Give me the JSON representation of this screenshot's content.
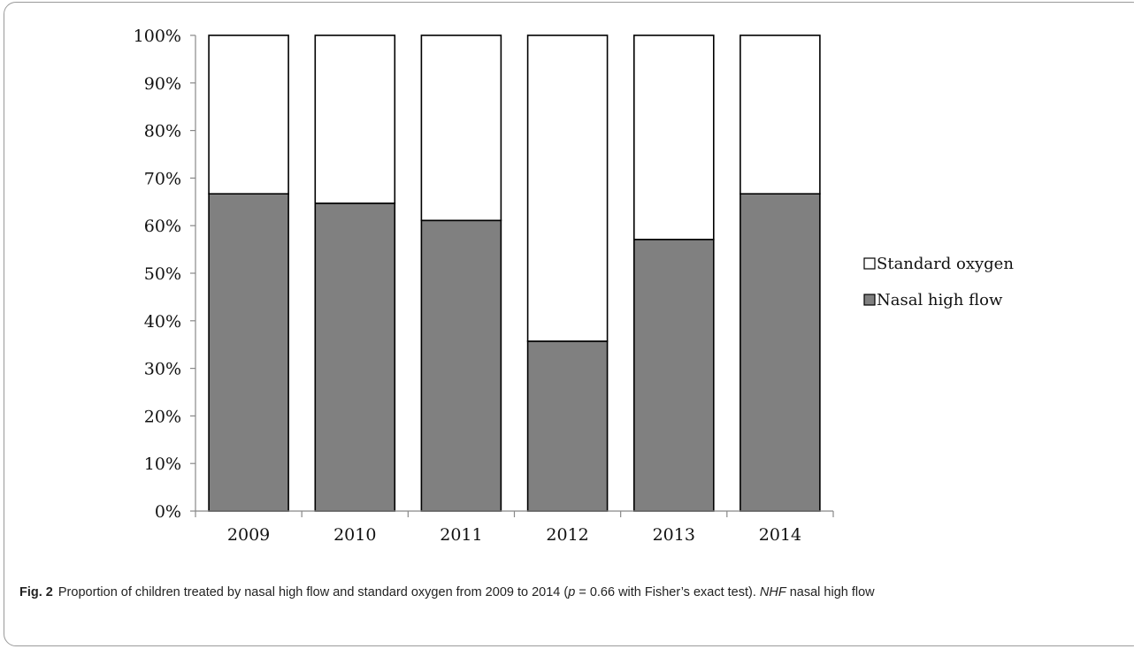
{
  "chart_data": {
    "type": "bar",
    "stacked": true,
    "percent_stacked": true,
    "categories": [
      "2009",
      "2010",
      "2011",
      "2012",
      "2013",
      "2014"
    ],
    "series": [
      {
        "name": "Nasal high flow",
        "values": [
          66.7,
          64.7,
          61.1,
          35.7,
          57.1,
          66.7
        ],
        "color": "#808080"
      },
      {
        "name": "Standard oxygen",
        "values": [
          33.3,
          35.3,
          38.9,
          64.3,
          42.9,
          33.3
        ],
        "color": "#ffffff"
      }
    ],
    "ylim": [
      0,
      100
    ],
    "yticks": [
      "0%",
      "10%",
      "20%",
      "30%",
      "40%",
      "50%",
      "60%",
      "70%",
      "80%",
      "90%",
      "100%"
    ],
    "grid": false,
    "legend": "right",
    "legend_order": [
      "Standard oxygen",
      "Nasal high flow"
    ]
  },
  "caption": {
    "figure_number": "Fig. 2",
    "text_part1": "Proportion of children treated by nasal high flow and standard oxygen from 2009 to 2014 (",
    "p_symbol": "p",
    "text_part2": " = 0.66 with Fisher’s exact test). ",
    "abbrev": "NHF",
    "text_part3": " nasal high flow"
  }
}
